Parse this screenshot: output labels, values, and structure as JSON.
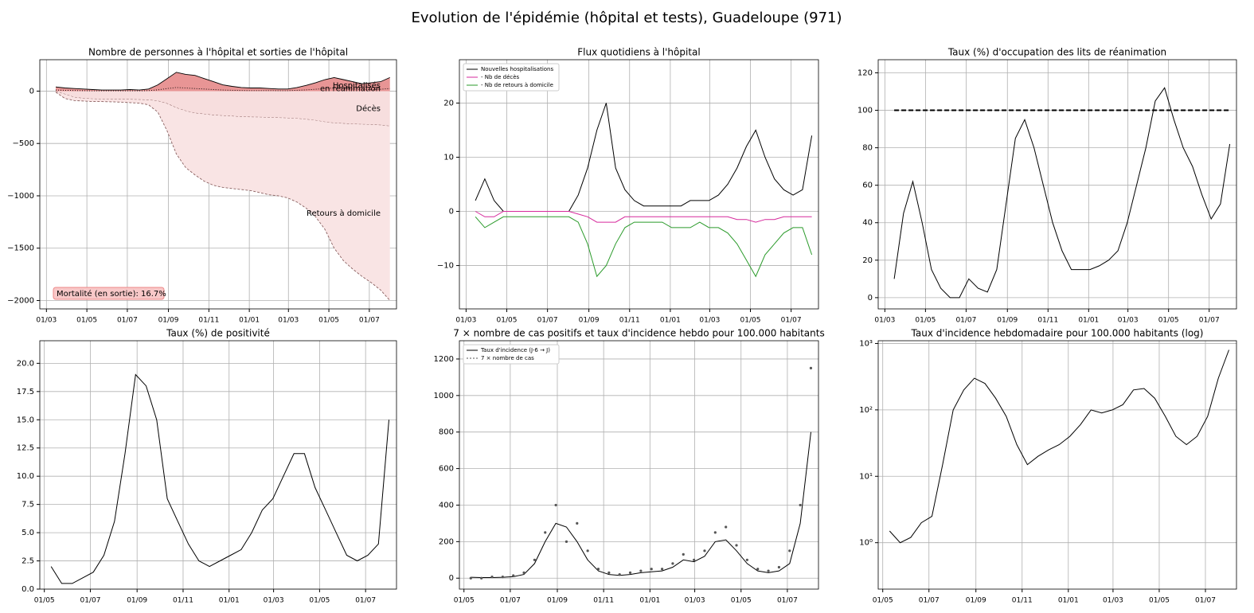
{
  "title": "Evolution de l'épidémie (hôpital et tests), Guadeloupe (971)",
  "chart_data": [
    {
      "type": "area",
      "title": "Nombre de personnes à l'hôpital et sorties de l'hôpital",
      "x": [
        14,
        28,
        42,
        56,
        70,
        84,
        98,
        112,
        126,
        140,
        154,
        168,
        182,
        196,
        210,
        224,
        238,
        252,
        266,
        280,
        294,
        308,
        322,
        336,
        350,
        364,
        378,
        392,
        406,
        420,
        434,
        448,
        462,
        476,
        490,
        504,
        518
      ],
      "series": [
        {
          "name": "Hospitalisés",
          "color": "#e89595",
          "line_color": "#000000",
          "fill": true,
          "values": [
            40,
            30,
            25,
            20,
            15,
            10,
            10,
            10,
            15,
            10,
            20,
            60,
            120,
            180,
            160,
            150,
            120,
            90,
            60,
            45,
            35,
            30,
            30,
            25,
            20,
            20,
            35,
            55,
            80,
            110,
            130,
            110,
            90,
            70,
            80,
            90,
            130
          ]
        },
        {
          "name": "en réanimation",
          "color": "#000000",
          "line_color": "#000000",
          "fill": false,
          "dash": "1,2",
          "values": [
            10,
            8,
            6,
            4,
            2,
            2,
            2,
            2,
            3,
            2,
            5,
            12,
            25,
            35,
            30,
            25,
            20,
            15,
            10,
            8,
            6,
            5,
            5,
            5,
            4,
            4,
            8,
            12,
            18,
            25,
            30,
            25,
            20,
            15,
            15,
            18,
            25
          ]
        },
        {
          "name": "Décès",
          "color": "#f7dede",
          "line_color": "#8a6060",
          "fill": true,
          "dash": "3,2",
          "values": [
            -5,
            -30,
            -60,
            -70,
            -75,
            -78,
            -80,
            -80,
            -80,
            -82,
            -85,
            -95,
            -120,
            -160,
            -190,
            -210,
            -220,
            -230,
            -235,
            -240,
            -245,
            -248,
            -250,
            -252,
            -255,
            -258,
            -262,
            -270,
            -280,
            -295,
            -305,
            -310,
            -315,
            -318,
            -320,
            -325,
            -335
          ]
        },
        {
          "name": "Retours à domicile",
          "color": "#f9e4e4",
          "line_color": "#8a6060",
          "fill": true,
          "dash": "3,2",
          "values": [
            -5,
            -40,
            -30,
            -25,
            -25,
            -22,
            -22,
            -25,
            -30,
            -33,
            -45,
            -105,
            -260,
            -440,
            -540,
            -590,
            -640,
            -670,
            -685,
            -690,
            -695,
            -702,
            -720,
            -738,
            -745,
            -762,
            -798,
            -850,
            -920,
            -1025,
            -1195,
            -1310,
            -1385,
            -1452,
            -1510,
            -1575,
            -1665
          ]
        }
      ],
      "annotation": "Mortalité (en sortie): 16.7%",
      "xlim": [
        -10,
        528
      ],
      "xticks": [
        {
          "value": 0,
          "label": "01/03"
        },
        {
          "value": 61,
          "label": "01/05"
        },
        {
          "value": 122,
          "label": "01/07"
        },
        {
          "value": 184,
          "label": "01/09"
        },
        {
          "value": 245,
          "label": "01/11"
        },
        {
          "value": 306,
          "label": "01/01"
        },
        {
          "value": 365,
          "label": "01/03"
        },
        {
          "value": 426,
          "label": "01/05"
        },
        {
          "value": 487,
          "label": "01/07"
        }
      ],
      "ylim": [
        -2080,
        300
      ],
      "yticks": [
        0,
        {
          "value": -500,
          "label": "−500"
        },
        {
          "value": -1000,
          "label": "−1000"
        },
        {
          "value": -1500,
          "label": "−1500"
        },
        {
          "value": -2000,
          "label": "−2000"
        }
      ],
      "grid": true
    },
    {
      "type": "line",
      "title": "Flux quotidiens à l'hôpital",
      "x": [
        14,
        28,
        42,
        56,
        70,
        84,
        98,
        112,
        126,
        140,
        154,
        168,
        182,
        196,
        210,
        224,
        238,
        252,
        266,
        280,
        294,
        308,
        322,
        336,
        350,
        364,
        378,
        392,
        406,
        420,
        434,
        448,
        462,
        476,
        490,
        504,
        518
      ],
      "series": [
        {
          "name": "Nouvelles hospitalisations",
          "color": "#000000",
          "values": [
            2,
            6,
            2,
            0,
            0,
            0,
            0,
            0,
            0,
            0,
            0,
            3,
            8,
            15,
            20,
            8,
            4,
            2,
            1,
            1,
            1,
            1,
            1,
            2,
            2,
            2,
            3,
            5,
            8,
            12,
            15,
            10,
            6,
            4,
            3,
            4,
            14
          ]
        },
        {
          "name": "- Nb de décès",
          "color": "#d62a9c",
          "values": [
            0,
            -1,
            -1,
            0,
            0,
            0,
            0,
            0,
            0,
            0,
            0,
            -0.5,
            -1,
            -2,
            -2,
            -2,
            -1,
            -1,
            -1,
            -1,
            -1,
            -1,
            -1,
            -1,
            -1,
            -1,
            -1,
            -1,
            -1.5,
            -1.5,
            -2,
            -1.5,
            -1.5,
            -1,
            -1,
            -1,
            -1
          ]
        },
        {
          "name": "- Nb de retours à domicile",
          "color": "#2a9a2a",
          "values": [
            -1,
            -3,
            -2,
            -1,
            -1,
            -1,
            -1,
            -1,
            -1,
            -1,
            -1,
            -2,
            -6,
            -12,
            -10,
            -6,
            -3,
            -2,
            -2,
            -2,
            -2,
            -3,
            -3,
            -3,
            -2,
            -3,
            -3,
            -4,
            -6,
            -9,
            -12,
            -8,
            -6,
            -4,
            -3,
            -3,
            -8
          ]
        }
      ],
      "legend": "upper left",
      "xlim": [
        -10,
        528
      ],
      "xticks": [
        {
          "value": 0,
          "label": "01/03"
        },
        {
          "value": 61,
          "label": "01/05"
        },
        {
          "value": 122,
          "label": "01/07"
        },
        {
          "value": 184,
          "label": "01/09"
        },
        {
          "value": 245,
          "label": "01/11"
        },
        {
          "value": 306,
          "label": "01/01"
        },
        {
          "value": 365,
          "label": "01/03"
        },
        {
          "value": 426,
          "label": "01/05"
        },
        {
          "value": 487,
          "label": "01/07"
        }
      ],
      "ylim": [
        -18,
        28
      ],
      "yticks": [
        {
          "value": -10,
          "label": "−10"
        },
        0,
        10,
        20
      ],
      "grid": true
    },
    {
      "type": "line",
      "title": "Taux (%) d'occupation des lits de réanimation",
      "x": [
        14,
        28,
        42,
        56,
        70,
        84,
        98,
        112,
        126,
        140,
        154,
        168,
        182,
        196,
        210,
        224,
        238,
        252,
        266,
        280,
        294,
        308,
        322,
        336,
        350,
        364,
        378,
        392,
        406,
        420,
        434,
        448,
        462,
        476,
        490,
        504,
        518
      ],
      "series": [
        {
          "color": "#000000",
          "values": [
            10,
            45,
            62,
            40,
            15,
            5,
            0,
            0,
            10,
            5,
            3,
            15,
            50,
            85,
            95,
            80,
            60,
            40,
            25,
            15,
            15,
            15,
            17,
            20,
            25,
            40,
            60,
            80,
            105,
            112,
            95,
            80,
            70,
            55,
            42,
            50,
            82
          ]
        }
      ],
      "reference_line": 100,
      "xlim": [
        -10,
        528
      ],
      "xticks": [
        {
          "value": 0,
          "label": "01/03"
        },
        {
          "value": 61,
          "label": "01/05"
        },
        {
          "value": 122,
          "label": "01/07"
        },
        {
          "value": 184,
          "label": "01/09"
        },
        {
          "value": 245,
          "label": "01/11"
        },
        {
          "value": 306,
          "label": "01/01"
        },
        {
          "value": 365,
          "label": "01/03"
        },
        {
          "value": 426,
          "label": "01/05"
        },
        {
          "value": 487,
          "label": "01/07"
        }
      ],
      "ylim": [
        -6,
        127
      ],
      "yticks": [
        0,
        20,
        40,
        60,
        80,
        100,
        120
      ],
      "grid": true
    },
    {
      "type": "line",
      "title": "Taux (%) de positivité",
      "x": [
        70,
        84,
        98,
        112,
        126,
        140,
        154,
        168,
        182,
        196,
        210,
        224,
        238,
        252,
        266,
        280,
        294,
        308,
        322,
        336,
        350,
        364,
        378,
        392,
        406,
        420,
        434,
        448,
        462,
        476,
        490,
        504,
        518
      ],
      "series": [
        {
          "color": "#000000",
          "values": [
            2,
            0.5,
            0.5,
            1,
            1.5,
            3,
            6,
            12,
            19,
            18,
            15,
            8,
            6,
            4,
            2.5,
            2,
            2.5,
            3,
            3.5,
            5,
            7,
            8,
            10,
            12,
            12,
            9,
            7,
            5,
            3,
            2.5,
            3,
            4,
            15
          ]
        }
      ],
      "xlim": [
        55,
        528
      ],
      "xticks": [
        {
          "value": 61,
          "label": "01/05"
        },
        {
          "value": 122,
          "label": "01/07"
        },
        {
          "value": 184,
          "label": "01/09"
        },
        {
          "value": 245,
          "label": "01/11"
        },
        {
          "value": 306,
          "label": "01/01"
        },
        {
          "value": 365,
          "label": "01/03"
        },
        {
          "value": 426,
          "label": "01/05"
        },
        {
          "value": 487,
          "label": "01/07"
        }
      ],
      "ylim": [
        0,
        22
      ],
      "yticks": [
        {
          "value": 0,
          "label": "0.0"
        },
        2.5,
        {
          "value": 5,
          "label": "5.0"
        },
        7.5,
        {
          "value": 10,
          "label": "10.0"
        },
        12.5,
        {
          "value": 15,
          "label": "15.0"
        },
        17.5,
        {
          "value": 20,
          "label": "20.0"
        }
      ],
      "grid": true
    },
    {
      "type": "line",
      "title": "7 × nombre de cas positifs et taux d'incidence hebdo pour 100.000 habitants",
      "x": [
        70,
        84,
        98,
        112,
        126,
        140,
        154,
        168,
        182,
        196,
        210,
        224,
        238,
        252,
        266,
        280,
        294,
        308,
        322,
        336,
        350,
        364,
        378,
        392,
        406,
        420,
        434,
        448,
        462,
        476,
        490,
        504,
        518
      ],
      "series": [
        {
          "name": "Taux d'incidence (J-6 → J)",
          "color": "#000000",
          "values": [
            5,
            3,
            3,
            5,
            8,
            20,
            80,
            200,
            300,
            280,
            200,
            100,
            40,
            20,
            15,
            20,
            30,
            35,
            40,
            60,
            100,
            90,
            120,
            200,
            210,
            150,
            80,
            40,
            30,
            40,
            80,
            300,
            800
          ]
        },
        {
          "name": "7 × nombre de cas",
          "color": "#555555",
          "style": "dots",
          "values": [
            0,
            0,
            7,
            7,
            14,
            30,
            100,
            250,
            400,
            200,
            300,
            150,
            50,
            30,
            20,
            30,
            40,
            50,
            50,
            80,
            130,
            100,
            150,
            250,
            280,
            180,
            100,
            50,
            40,
            60,
            150,
            400,
            1150
          ]
        }
      ],
      "legend": "upper left",
      "xlim": [
        55,
        528
      ],
      "xticks": [
        {
          "value": 61,
          "label": "01/05"
        },
        {
          "value": 122,
          "label": "01/07"
        },
        {
          "value": 184,
          "label": "01/09"
        },
        {
          "value": 245,
          "label": "01/11"
        },
        {
          "value": 306,
          "label": "01/01"
        },
        {
          "value": 365,
          "label": "01/03"
        },
        {
          "value": 426,
          "label": "01/05"
        },
        {
          "value": 487,
          "label": "01/07"
        }
      ],
      "ylim": [
        -60,
        1300
      ],
      "yticks": [
        0,
        200,
        400,
        600,
        800,
        1000,
        1200
      ],
      "grid": true
    },
    {
      "type": "line",
      "title": "Taux d'incidence hebdomadaire pour 100.000 habitants (log)",
      "x": [
        70,
        84,
        98,
        112,
        126,
        140,
        154,
        168,
        182,
        196,
        210,
        224,
        238,
        252,
        266,
        280,
        294,
        308,
        322,
        336,
        350,
        364,
        378,
        392,
        406,
        420,
        434,
        448,
        462,
        476,
        490,
        504,
        518
      ],
      "series": [
        {
          "color": "#000000",
          "values": [
            1.5,
            1,
            1.2,
            2,
            2.5,
            15,
            100,
            200,
            300,
            250,
            150,
            80,
            30,
            15,
            20,
            25,
            30,
            40,
            60,
            100,
            90,
            100,
            120,
            200,
            210,
            150,
            80,
            40,
            30,
            40,
            80,
            300,
            800
          ]
        }
      ],
      "log_scale": true,
      "xlim": [
        55,
        528
      ],
      "xticks": [
        {
          "value": 61,
          "label": "01/05"
        },
        {
          "value": 122,
          "label": "01/07"
        },
        {
          "value": 184,
          "label": "01/09"
        },
        {
          "value": 245,
          "label": "01/11"
        },
        {
          "value": 306,
          "label": "01/01"
        },
        {
          "value": 365,
          "label": "01/03"
        },
        {
          "value": 426,
          "label": "01/05"
        },
        {
          "value": 487,
          "label": "01/07"
        }
      ],
      "ylim": [
        0.2,
        1100
      ],
      "yticks": [
        {
          "value": 1,
          "label": "10⁰"
        },
        {
          "value": 10,
          "label": "10¹"
        },
        {
          "value": 100,
          "label": "10²"
        },
        {
          "value": 1000,
          "label": "10³"
        }
      ],
      "grid": true
    }
  ]
}
